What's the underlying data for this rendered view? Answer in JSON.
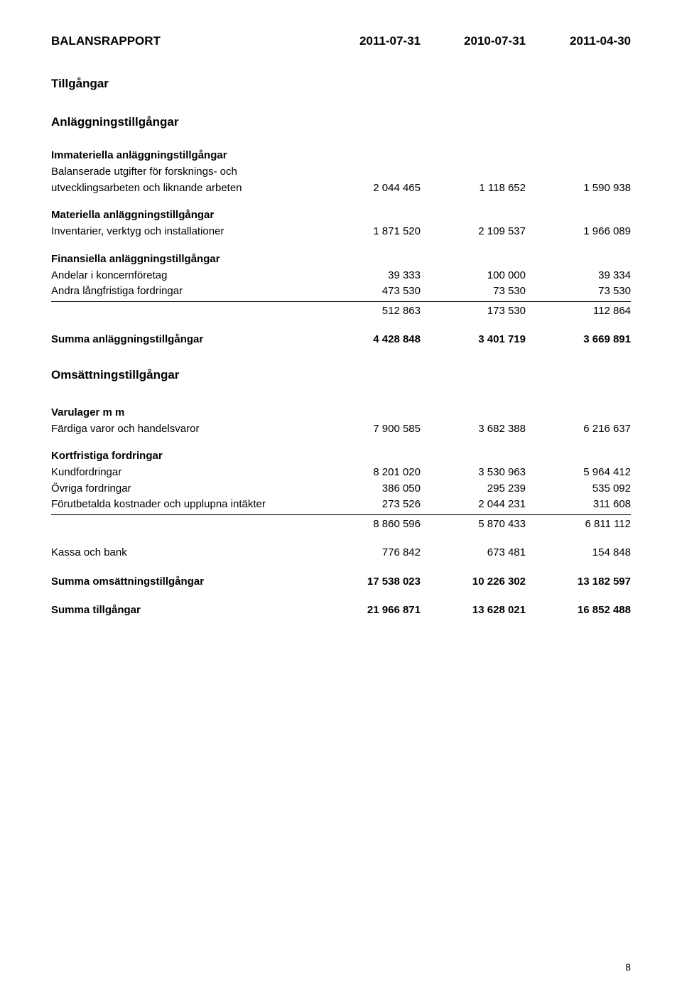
{
  "header": {
    "title": "BALANSRAPPORT",
    "cols": [
      "2011-07-31",
      "2010-07-31",
      "2011-04-30"
    ]
  },
  "sections": {
    "tillgangar": "Tillgångar",
    "anlaggning": "Anläggningstillgångar",
    "immateriella": {
      "heading": "Immateriella anläggningstillgångar",
      "rows": [
        {
          "label": "Balanserade utgifter för forsknings- och",
          "vals": [
            "",
            "",
            ""
          ]
        },
        {
          "label": "utvecklingsarbeten och liknande arbeten",
          "vals": [
            "2 044 465",
            "1 118 652",
            "1 590 938"
          ]
        }
      ]
    },
    "materiella": {
      "heading": "Materiella anläggningstillgångar",
      "rows": [
        {
          "label": "Inventarier, verktyg och installationer",
          "vals": [
            "1 871 520",
            "2 109 537",
            "1 966 089"
          ]
        }
      ]
    },
    "finansiella": {
      "heading": "Finansiella anläggningstillgångar",
      "rows": [
        {
          "label": "Andelar i koncernföretag",
          "vals": [
            "39 333",
            "100 000",
            "39 334"
          ]
        },
        {
          "label": "Andra långfristiga fordringar",
          "vals": [
            "473 530",
            "73 530",
            "73 530"
          ]
        }
      ],
      "subtotal": {
        "label": "",
        "vals": [
          "512 863",
          "173 530",
          "112 864"
        ]
      }
    },
    "summa_anlaggning": {
      "label": "Summa anläggningstillgångar",
      "vals": [
        "4 428 848",
        "3 401 719",
        "3 669 891"
      ]
    },
    "omsattning": "Omsättningstillgångar",
    "varulager": {
      "heading": "Varulager m m",
      "rows": [
        {
          "label": "Färdiga varor och handelsvaror",
          "vals": [
            "7 900 585",
            "3 682 388",
            "6 216 637"
          ]
        }
      ]
    },
    "kortfristiga": {
      "heading": "Kortfristiga fordringar",
      "rows": [
        {
          "label": "Kundfordringar",
          "vals": [
            "8 201 020",
            "3 530 963",
            "5 964 412"
          ]
        },
        {
          "label": "Övriga fordringar",
          "vals": [
            "386 050",
            "295 239",
            "535 092"
          ]
        },
        {
          "label": "Förutbetalda kostnader och upplupna intäkter",
          "vals": [
            "273 526",
            "2 044 231",
            "311 608"
          ]
        }
      ],
      "subtotal": {
        "label": "",
        "vals": [
          "8 860 596",
          "5 870 433",
          "6 811 112"
        ]
      }
    },
    "kassa": {
      "label": "Kassa och bank",
      "vals": [
        "776 842",
        "673 481",
        "154 848"
      ]
    },
    "summa_omsattning": {
      "label": "Summa omsättningstillgångar",
      "vals": [
        "17 538 023",
        "10 226 302",
        "13 182 597"
      ]
    },
    "summa_tillgangar": {
      "label": "Summa tillgångar",
      "vals": [
        "21 966 871",
        "13 628 021",
        "16 852 488"
      ]
    }
  },
  "page_number": "8"
}
